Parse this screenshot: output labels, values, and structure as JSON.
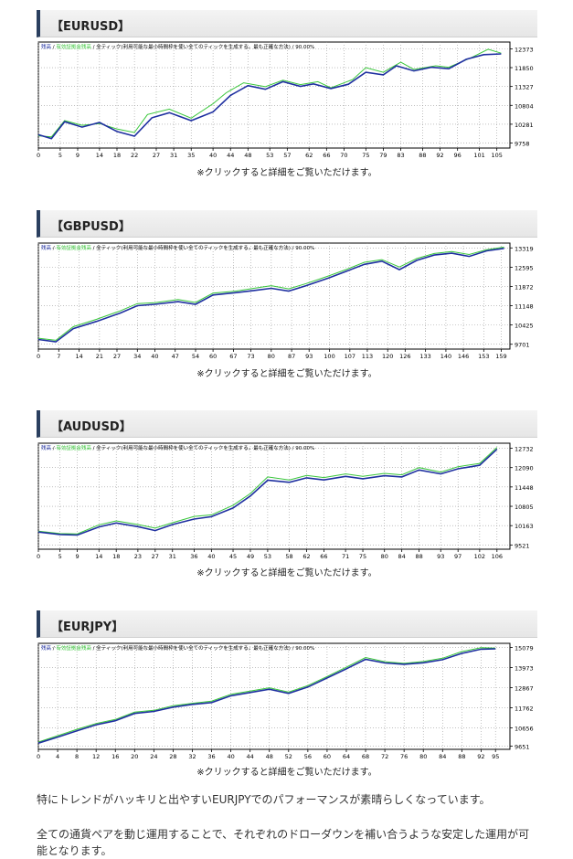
{
  "caption": "※クリックすると詳細をご覧いただけます。",
  "legend": {
    "balance": "残高",
    "equity": "有効証拠金残高",
    "sep": " / ",
    "model": "全ティック(利用可能な最小時間枠を使い全てのティックを生成する。最も正確な方法)",
    "quality": "90.00%"
  },
  "colors": {
    "balance": "#1e2fa0",
    "equity": "#39c63a",
    "heading_border": "#2a3f5f"
  },
  "paragraphs": [
    "特にトレンドがハッキリと出やすいEURJPYでのパフォーマンスが素晴らしくなっています。",
    "全ての通貨ペアを動じ運用することで、それぞれのドローダウンを補い合うような安定した運用が可能となります。"
  ],
  "charts": [
    {
      "heading": "【EURUSD】",
      "chart_data": {
        "type": "line",
        "x_ticks": [
          0,
          5,
          9,
          14,
          18,
          22,
          27,
          31,
          35,
          40,
          44,
          48,
          53,
          57,
          62,
          66,
          70,
          75,
          79,
          83,
          88,
          92,
          96,
          101,
          105
        ],
        "y_ticks": [
          9758,
          10281,
          10804,
          11327,
          11850,
          12373
        ],
        "xlim": [
          0,
          108
        ],
        "ylim": [
          9620,
          12560
        ],
        "balance": [
          [
            0,
            9990
          ],
          [
            3,
            9880
          ],
          [
            6,
            10350
          ],
          [
            10,
            10200
          ],
          [
            14,
            10330
          ],
          [
            18,
            10080
          ],
          [
            22,
            9950
          ],
          [
            26,
            10460
          ],
          [
            30,
            10600
          ],
          [
            35,
            10380
          ],
          [
            40,
            10620
          ],
          [
            44,
            11080
          ],
          [
            48,
            11350
          ],
          [
            52,
            11250
          ],
          [
            56,
            11460
          ],
          [
            60,
            11330
          ],
          [
            63,
            11400
          ],
          [
            67,
            11270
          ],
          [
            71,
            11390
          ],
          [
            75,
            11720
          ],
          [
            79,
            11650
          ],
          [
            82,
            11900
          ],
          [
            86,
            11760
          ],
          [
            90,
            11860
          ],
          [
            94,
            11820
          ],
          [
            98,
            12080
          ],
          [
            102,
            12210
          ],
          [
            106,
            12230
          ]
        ],
        "equity": [
          [
            0,
            9960
          ],
          [
            3,
            9930
          ],
          [
            6,
            10380
          ],
          [
            10,
            10250
          ],
          [
            14,
            10300
          ],
          [
            18,
            10150
          ],
          [
            22,
            10050
          ],
          [
            25,
            10550
          ],
          [
            30,
            10700
          ],
          [
            35,
            10450
          ],
          [
            40,
            10850
          ],
          [
            43,
            11150
          ],
          [
            47,
            11430
          ],
          [
            52,
            11320
          ],
          [
            56,
            11500
          ],
          [
            60,
            11380
          ],
          [
            64,
            11460
          ],
          [
            67,
            11290
          ],
          [
            72,
            11520
          ],
          [
            75,
            11850
          ],
          [
            79,
            11720
          ],
          [
            83,
            12000
          ],
          [
            86,
            11800
          ],
          [
            91,
            11900
          ],
          [
            94,
            11860
          ],
          [
            99,
            12120
          ],
          [
            103,
            12360
          ],
          [
            106,
            12250
          ]
        ]
      }
    },
    {
      "heading": "【GBPUSD】",
      "chart_data": {
        "type": "line",
        "x_ticks": [
          0,
          7,
          14,
          21,
          27,
          34,
          40,
          47,
          54,
          60,
          67,
          73,
          80,
          87,
          93,
          100,
          107,
          113,
          120,
          126,
          133,
          140,
          146,
          153,
          159
        ],
        "y_ticks": [
          9701,
          10425,
          11148,
          11872,
          12595,
          13319
        ],
        "xlim": [
          0,
          162
        ],
        "ylim": [
          9520,
          13500
        ],
        "balance": [
          [
            0,
            9880
          ],
          [
            6,
            9790
          ],
          [
            12,
            10290
          ],
          [
            20,
            10560
          ],
          [
            28,
            10870
          ],
          [
            34,
            11150
          ],
          [
            40,
            11200
          ],
          [
            48,
            11300
          ],
          [
            54,
            11200
          ],
          [
            60,
            11550
          ],
          [
            68,
            11640
          ],
          [
            74,
            11720
          ],
          [
            80,
            11800
          ],
          [
            86,
            11700
          ],
          [
            92,
            11900
          ],
          [
            100,
            12200
          ],
          [
            106,
            12450
          ],
          [
            112,
            12700
          ],
          [
            118,
            12820
          ],
          [
            124,
            12500
          ],
          [
            130,
            12850
          ],
          [
            136,
            13050
          ],
          [
            142,
            13120
          ],
          [
            148,
            13000
          ],
          [
            154,
            13210
          ],
          [
            160,
            13300
          ]
        ],
        "equity": [
          [
            0,
            9930
          ],
          [
            6,
            9850
          ],
          [
            12,
            10360
          ],
          [
            20,
            10640
          ],
          [
            28,
            10950
          ],
          [
            34,
            11230
          ],
          [
            40,
            11260
          ],
          [
            48,
            11380
          ],
          [
            54,
            11270
          ],
          [
            60,
            11620
          ],
          [
            68,
            11700
          ],
          [
            74,
            11800
          ],
          [
            80,
            11900
          ],
          [
            86,
            11780
          ],
          [
            92,
            11980
          ],
          [
            100,
            12280
          ],
          [
            106,
            12520
          ],
          [
            112,
            12780
          ],
          [
            118,
            12880
          ],
          [
            124,
            12600
          ],
          [
            130,
            12920
          ],
          [
            136,
            13110
          ],
          [
            142,
            13180
          ],
          [
            148,
            13070
          ],
          [
            154,
            13250
          ],
          [
            160,
            13350
          ]
        ]
      }
    },
    {
      "heading": "【AUDUSD】",
      "chart_data": {
        "type": "line",
        "x_ticks": [
          0,
          5,
          9,
          14,
          18,
          23,
          27,
          31,
          36,
          40,
          45,
          49,
          53,
          58,
          62,
          66,
          71,
          75,
          80,
          84,
          88,
          93,
          97,
          102,
          106
        ],
        "y_ticks": [
          9521,
          10163,
          10805,
          11448,
          12090,
          12732
        ],
        "xlim": [
          0,
          109
        ],
        "ylim": [
          9380,
          12900
        ],
        "balance": [
          [
            0,
            9950
          ],
          [
            5,
            9870
          ],
          [
            9,
            9850
          ],
          [
            14,
            10120
          ],
          [
            18,
            10250
          ],
          [
            23,
            10130
          ],
          [
            27,
            10000
          ],
          [
            31,
            10200
          ],
          [
            36,
            10380
          ],
          [
            40,
            10460
          ],
          [
            45,
            10750
          ],
          [
            49,
            11150
          ],
          [
            53,
            11670
          ],
          [
            58,
            11600
          ],
          [
            62,
            11750
          ],
          [
            66,
            11680
          ],
          [
            71,
            11800
          ],
          [
            75,
            11720
          ],
          [
            80,
            11820
          ],
          [
            84,
            11780
          ],
          [
            88,
            12010
          ],
          [
            93,
            11880
          ],
          [
            97,
            12050
          ],
          [
            102,
            12170
          ],
          [
            106,
            12700
          ]
        ],
        "equity": [
          [
            0,
            9980
          ],
          [
            5,
            9900
          ],
          [
            9,
            9890
          ],
          [
            14,
            10190
          ],
          [
            18,
            10320
          ],
          [
            23,
            10200
          ],
          [
            27,
            10080
          ],
          [
            31,
            10260
          ],
          [
            36,
            10470
          ],
          [
            40,
            10520
          ],
          [
            45,
            10840
          ],
          [
            49,
            11230
          ],
          [
            53,
            11780
          ],
          [
            58,
            11680
          ],
          [
            62,
            11830
          ],
          [
            66,
            11760
          ],
          [
            71,
            11880
          ],
          [
            75,
            11800
          ],
          [
            80,
            11900
          ],
          [
            84,
            11850
          ],
          [
            88,
            12090
          ],
          [
            93,
            11940
          ],
          [
            97,
            12120
          ],
          [
            102,
            12230
          ],
          [
            106,
            12760
          ]
        ]
      }
    },
    {
      "heading": "【EURJPY】",
      "chart_data": {
        "type": "line",
        "x_ticks": [
          0,
          4,
          8,
          12,
          16,
          20,
          24,
          28,
          32,
          36,
          40,
          44,
          48,
          52,
          56,
          60,
          64,
          68,
          72,
          76,
          80,
          84,
          88,
          92,
          95
        ],
        "y_ticks": [
          9651,
          10656,
          11762,
          12867,
          13973,
          15079
        ],
        "xlim": [
          0,
          98
        ],
        "ylim": [
          9480,
          15300
        ],
        "balance": [
          [
            0,
            9820
          ],
          [
            4,
            10150
          ],
          [
            8,
            10500
          ],
          [
            12,
            10830
          ],
          [
            16,
            11050
          ],
          [
            20,
            11450
          ],
          [
            24,
            11560
          ],
          [
            28,
            11800
          ],
          [
            32,
            11950
          ],
          [
            36,
            12050
          ],
          [
            40,
            12420
          ],
          [
            44,
            12600
          ],
          [
            48,
            12780
          ],
          [
            52,
            12550
          ],
          [
            56,
            12900
          ],
          [
            60,
            13400
          ],
          [
            64,
            13900
          ],
          [
            68,
            14420
          ],
          [
            72,
            14220
          ],
          [
            76,
            14150
          ],
          [
            80,
            14230
          ],
          [
            84,
            14400
          ],
          [
            88,
            14750
          ],
          [
            92,
            14980
          ],
          [
            95,
            15000
          ]
        ],
        "equity": [
          [
            0,
            9880
          ],
          [
            4,
            10230
          ],
          [
            8,
            10580
          ],
          [
            12,
            10900
          ],
          [
            16,
            11120
          ],
          [
            20,
            11520
          ],
          [
            24,
            11620
          ],
          [
            28,
            11880
          ],
          [
            32,
            12010
          ],
          [
            36,
            12130
          ],
          [
            40,
            12500
          ],
          [
            44,
            12680
          ],
          [
            48,
            12860
          ],
          [
            52,
            12620
          ],
          [
            56,
            12980
          ],
          [
            60,
            13480
          ],
          [
            64,
            13990
          ],
          [
            68,
            14520
          ],
          [
            72,
            14290
          ],
          [
            76,
            14200
          ],
          [
            80,
            14300
          ],
          [
            84,
            14480
          ],
          [
            88,
            14850
          ],
          [
            92,
            15060
          ],
          [
            95,
            15040
          ]
        ]
      }
    }
  ]
}
